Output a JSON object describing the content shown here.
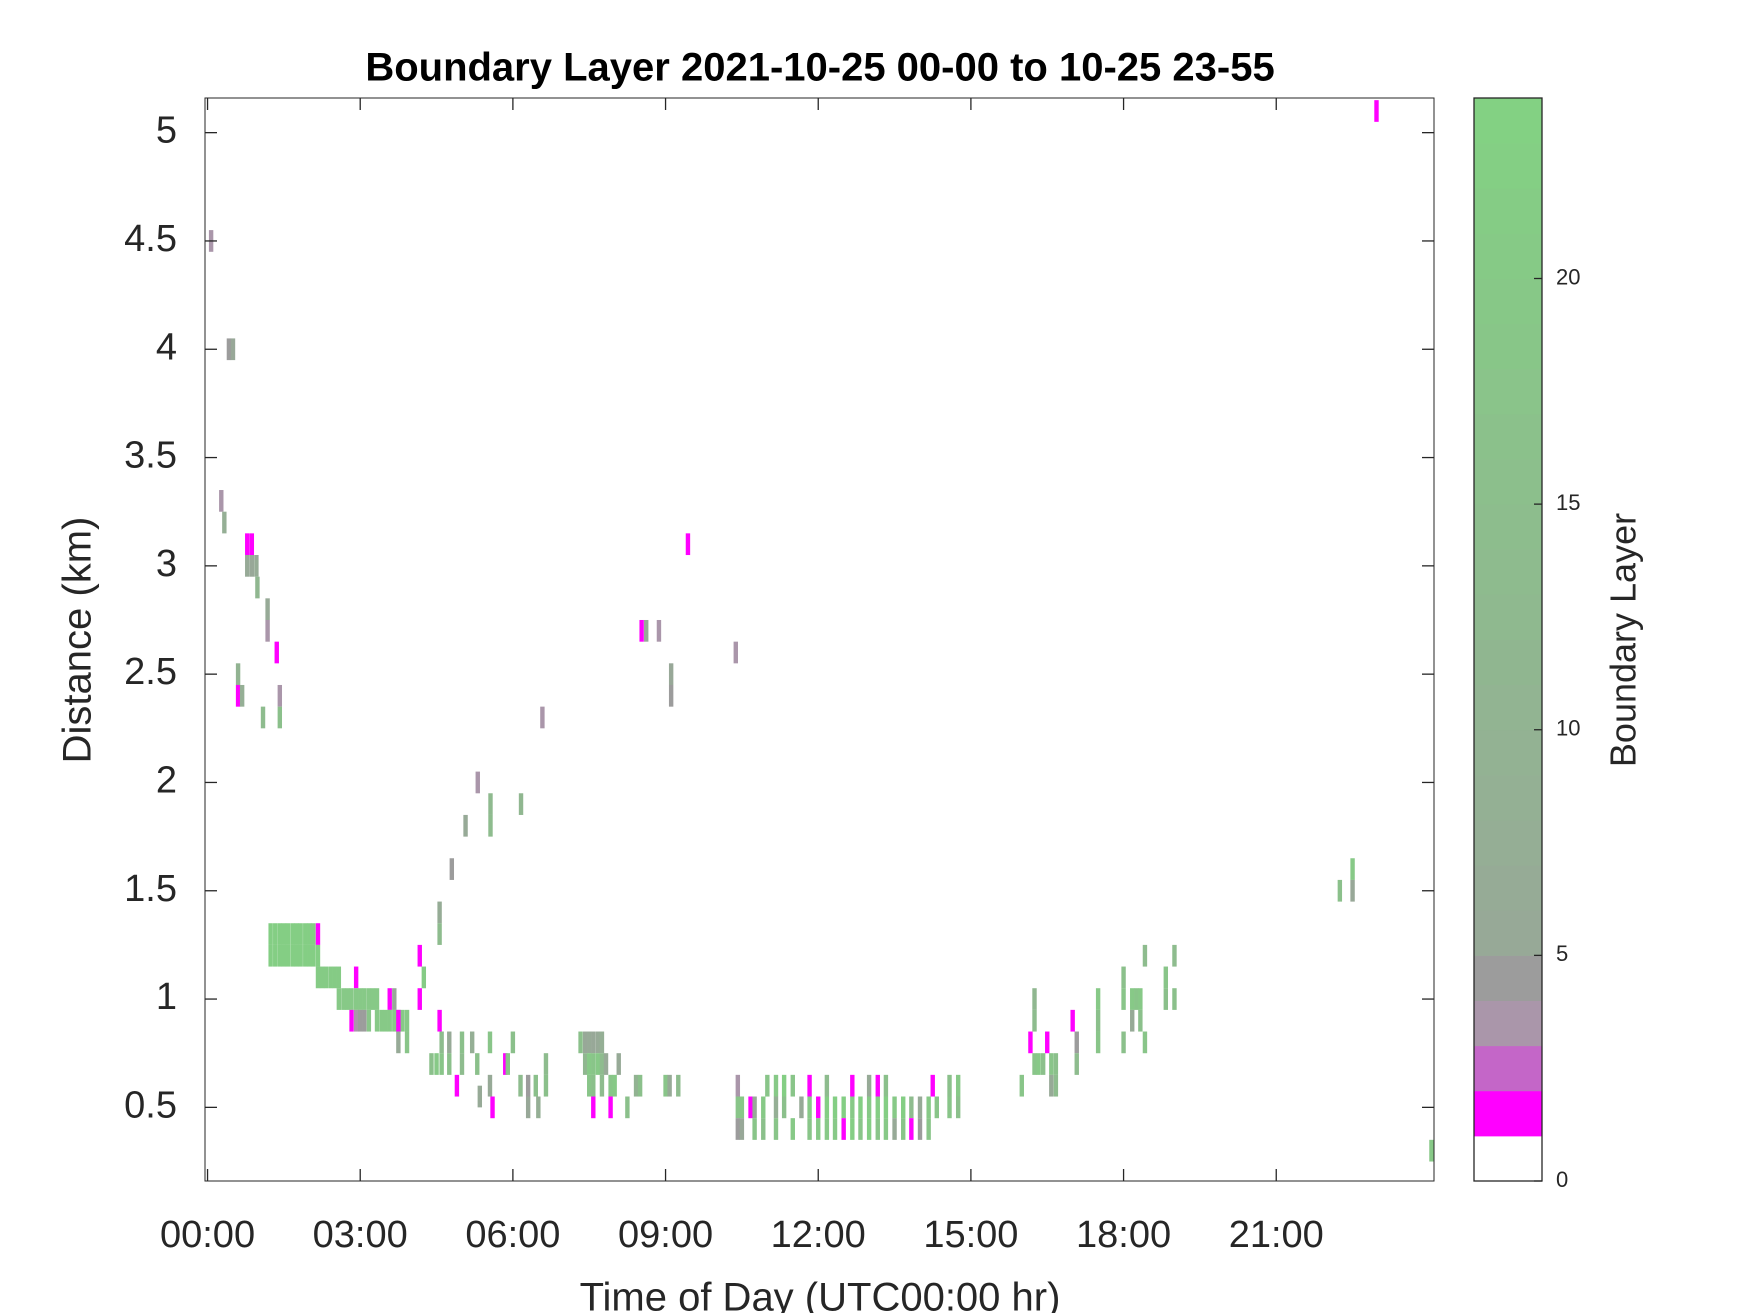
{
  "chart_data": {
    "type": "heatmap",
    "title": "Boundary Layer 2021-10-25 00-00 to 10-25 23-55",
    "x_label": "Time of Day (UTC00:00 hr)",
    "y_label": "Distance (km)",
    "colorbar_label": "Boundary Layer",
    "xlim": [
      -0.05,
      24.1
    ],
    "xticks": [
      {
        "value": 0,
        "label": "00:00"
      },
      {
        "value": 3,
        "label": "03:00"
      },
      {
        "value": 6,
        "label": "06:00"
      },
      {
        "value": 9,
        "label": "09:00"
      },
      {
        "value": 12,
        "label": "12:00"
      },
      {
        "value": 15,
        "label": "15:00"
      },
      {
        "value": 18,
        "label": "18:00"
      },
      {
        "value": 21,
        "label": "21:00"
      }
    ],
    "ylim": [
      0.16,
      5.16
    ],
    "yticks": [
      0.5,
      1,
      1.5,
      2,
      2.5,
      3,
      3.5,
      4,
      4.5,
      5
    ],
    "clim": [
      0,
      24
    ],
    "cticks": [
      0,
      5,
      10,
      15,
      20
    ],
    "colormap": [
      [
        0,
        "#ffffff"
      ],
      [
        1,
        "#ff00ff"
      ],
      [
        2,
        "#c466c8"
      ],
      [
        3,
        "#aa96aa"
      ],
      [
        4,
        "#9c9c9c"
      ],
      [
        5,
        "#98a898"
      ],
      [
        24,
        "#82d282"
      ]
    ],
    "x": [
      0.07,
      0.42,
      0.5,
      0.27,
      0.33,
      0.78,
      0.87,
      0.78,
      0.87,
      0.96,
      0.98,
      1.18,
      1.18,
      1.36,
      0.6,
      0.6,
      0.68,
      1.42,
      1.42,
      1.09,
      5.31,
      5.07,
      5.56,
      5.56,
      6.16,
      4.8,
      4.56,
      4.56,
      6.58,
      8.53,
      8.62,
      8.87,
      9.11,
      9.11,
      9.44,
      10.38,
      1.24,
      1.33,
      1.42,
      1.5,
      1.58,
      1.67,
      1.75,
      1.83,
      1.92,
      2.0,
      2.08,
      1.24,
      1.33,
      1.42,
      1.5,
      1.58,
      1.67,
      1.75,
      1.83,
      1.92,
      2.0,
      2.08,
      2.17,
      2.17,
      2.17,
      2.25,
      2.33,
      2.42,
      2.5,
      2.58,
      2.92,
      2.58,
      2.67,
      2.75,
      2.83,
      2.92,
      3.0,
      3.08,
      3.17,
      3.25,
      3.33,
      3.58,
      3.67,
      4.17,
      4.25,
      4.17,
      2.83,
      2.92,
      3.0,
      3.08,
      3.17,
      3.33,
      3.42,
      3.5,
      3.58,
      3.67,
      3.75,
      3.83,
      3.92,
      3.75,
      3.75,
      3.92,
      4.56,
      4.4,
      4.5,
      4.6,
      4.6,
      4.75,
      4.75,
      4.9,
      5.0,
      5.0,
      5.2,
      5.3,
      5.55,
      5.55,
      5.6,
      5.35,
      5.85,
      6.0,
      5.9,
      6.15,
      6.3,
      6.3,
      6.45,
      6.5,
      6.65,
      6.65,
      7.33,
      7.42,
      7.5,
      7.58,
      7.67,
      7.75,
      7.42,
      7.5,
      7.58,
      7.67,
      7.75,
      7.83,
      7.5,
      7.58,
      7.75,
      7.92,
      8.0,
      8.08,
      7.58,
      7.92,
      8.25,
      8.42,
      8.5,
      9.0,
      9.08,
      9.25,
      10.42,
      10.42,
      10.42,
      10.5,
      10.5,
      10.67,
      10.75,
      10.75,
      10.92,
      10.92,
      11.0,
      11.17,
      11.17,
      11.17,
      11.33,
      11.33,
      11.5,
      11.5,
      11.67,
      11.83,
      11.83,
      11.83,
      12.0,
      12.0,
      12.17,
      12.17,
      12.17,
      12.33,
      12.33,
      12.5,
      12.5,
      12.67,
      12.67,
      12.67,
      12.83,
      12.83,
      13.0,
      13.0,
      13.0,
      13.17,
      13.17,
      13.17,
      13.33,
      13.33,
      13.33,
      13.5,
      13.5,
      13.67,
      13.67,
      13.83,
      13.83,
      14.0,
      14.0,
      14.17,
      14.17,
      14.25,
      14.33,
      14.58,
      14.58,
      14.75,
      14.75,
      16.0,
      16.17,
      16.25,
      16.25,
      16.25,
      16.33,
      16.42,
      16.5,
      16.58,
      16.58,
      16.67,
      16.67,
      17.08,
      17.0,
      17.08,
      17.5,
      17.5,
      17.5,
      18.0,
      18.0,
      18.0,
      18.17,
      18.17,
      18.25,
      18.33,
      18.33,
      18.42,
      18.42,
      18.83,
      18.83,
      19.0,
      19.0,
      22.25,
      22.5,
      22.5,
      22.97,
      24.05
    ],
    "y": [
      4.5,
      4.0,
      4.0,
      3.3,
      3.2,
      3.1,
      3.1,
      3.0,
      3.0,
      3.0,
      2.9,
      2.8,
      2.7,
      2.6,
      2.5,
      2.4,
      2.4,
      2.4,
      2.3,
      2.3,
      2.0,
      1.8,
      1.9,
      1.8,
      1.9,
      1.6,
      1.4,
      1.3,
      2.3,
      2.7,
      2.7,
      2.7,
      2.5,
      2.4,
      3.1,
      2.6,
      1.3,
      1.3,
      1.3,
      1.3,
      1.3,
      1.3,
      1.3,
      1.3,
      1.3,
      1.3,
      1.3,
      1.2,
      1.2,
      1.2,
      1.2,
      1.2,
      1.2,
      1.2,
      1.2,
      1.2,
      1.2,
      1.2,
      1.3,
      1.2,
      1.1,
      1.1,
      1.1,
      1.1,
      1.1,
      1.1,
      1.1,
      1.0,
      1.0,
      1.0,
      1.0,
      1.0,
      1.0,
      1.0,
      1.0,
      1.0,
      1.0,
      1.0,
      1.0,
      1.0,
      1.1,
      1.2,
      0.9,
      0.9,
      0.9,
      0.9,
      0.9,
      0.9,
      0.9,
      0.9,
      0.9,
      0.9,
      0.9,
      0.9,
      0.9,
      0.9,
      0.8,
      0.8,
      0.9,
      0.7,
      0.7,
      0.8,
      0.7,
      0.8,
      0.7,
      0.6,
      0.8,
      0.7,
      0.8,
      0.7,
      0.8,
      0.6,
      0.5,
      0.55,
      0.7,
      0.8,
      0.7,
      0.6,
      0.6,
      0.5,
      0.6,
      0.5,
      0.6,
      0.7,
      0.8,
      0.8,
      0.8,
      0.8,
      0.8,
      0.8,
      0.7,
      0.7,
      0.7,
      0.7,
      0.7,
      0.7,
      0.6,
      0.6,
      0.6,
      0.6,
      0.6,
      0.7,
      0.5,
      0.5,
      0.5,
      0.6,
      0.6,
      0.6,
      0.6,
      0.6,
      0.6,
      0.5,
      0.4,
      0.5,
      0.4,
      0.5,
      0.5,
      0.4,
      0.5,
      0.4,
      0.6,
      0.6,
      0.5,
      0.4,
      0.6,
      0.5,
      0.6,
      0.4,
      0.5,
      0.6,
      0.5,
      0.4,
      0.5,
      0.4,
      0.6,
      0.5,
      0.4,
      0.5,
      0.4,
      0.5,
      0.4,
      0.6,
      0.5,
      0.4,
      0.5,
      0.4,
      0.6,
      0.5,
      0.4,
      0.6,
      0.5,
      0.4,
      0.6,
      0.5,
      0.4,
      0.5,
      0.4,
      0.5,
      0.4,
      0.5,
      0.4,
      0.5,
      0.4,
      0.5,
      0.4,
      0.6,
      0.5,
      0.6,
      0.5,
      0.6,
      0.5,
      0.6,
      0.8,
      0.7,
      0.9,
      1.0,
      0.7,
      0.7,
      0.8,
      0.7,
      0.6,
      0.7,
      0.6,
      0.8,
      0.9,
      0.7,
      0.9,
      0.8,
      1.0,
      0.8,
      1.0,
      1.1,
      1.0,
      0.9,
      1.0,
      0.9,
      1.0,
      0.8,
      1.2,
      1.0,
      1.1,
      1.0,
      1.2,
      1.5,
      1.6,
      1.5,
      5.1,
      0.3
    ],
    "values": [
      3,
      4,
      5,
      3,
      8,
      1,
      1,
      6,
      5,
      7,
      12,
      6,
      3,
      1,
      10,
      1,
      8,
      3,
      16,
      14,
      3,
      6,
      13,
      14,
      12,
      4,
      7,
      14,
      3,
      1,
      5,
      3,
      5,
      4,
      1,
      3,
      22,
      22,
      22,
      22,
      22,
      22,
      22,
      22,
      22,
      22,
      22,
      22,
      22,
      22,
      22,
      22,
      22,
      22,
      22,
      22,
      22,
      22,
      1,
      22,
      21,
      21,
      21,
      21,
      21,
      21,
      1,
      20,
      20,
      20,
      20,
      20,
      20,
      20,
      20,
      20,
      20,
      1,
      5,
      1,
      21,
      1,
      1,
      3,
      4,
      4,
      18,
      20,
      20,
      20,
      20,
      20,
      20,
      20,
      20,
      1,
      6,
      18,
      1,
      16,
      20,
      14,
      18,
      6,
      16,
      1,
      16,
      14,
      8,
      16,
      18,
      6,
      1,
      6,
      1,
      16,
      18,
      14,
      4,
      5,
      16,
      8,
      16,
      14,
      16,
      5,
      6,
      5,
      6,
      8,
      12,
      20,
      18,
      20,
      14,
      6,
      18,
      16,
      14,
      18,
      20,
      6,
      1,
      1,
      16,
      10,
      16,
      18,
      6,
      14,
      3,
      18,
      4,
      20,
      5,
      1,
      6,
      18,
      20,
      16,
      18,
      20,
      8,
      18,
      22,
      16,
      18,
      20,
      6,
      1,
      20,
      18,
      1,
      20,
      14,
      22,
      20,
      22,
      20,
      22,
      1,
      1,
      20,
      22,
      22,
      18,
      6,
      20,
      22,
      1,
      22,
      18,
      16,
      22,
      20,
      20,
      6,
      22,
      18,
      14,
      1,
      6,
      4,
      20,
      18,
      1,
      18,
      16,
      18,
      20,
      16,
      18,
      1,
      18,
      14,
      12,
      20,
      16,
      1,
      18,
      6,
      16,
      14,
      4,
      1,
      14,
      16,
      18,
      20,
      16,
      18,
      16,
      20,
      6,
      18,
      16,
      20,
      18,
      14,
      16,
      18,
      16,
      14,
      16,
      20,
      5,
      1,
      20
    ]
  }
}
